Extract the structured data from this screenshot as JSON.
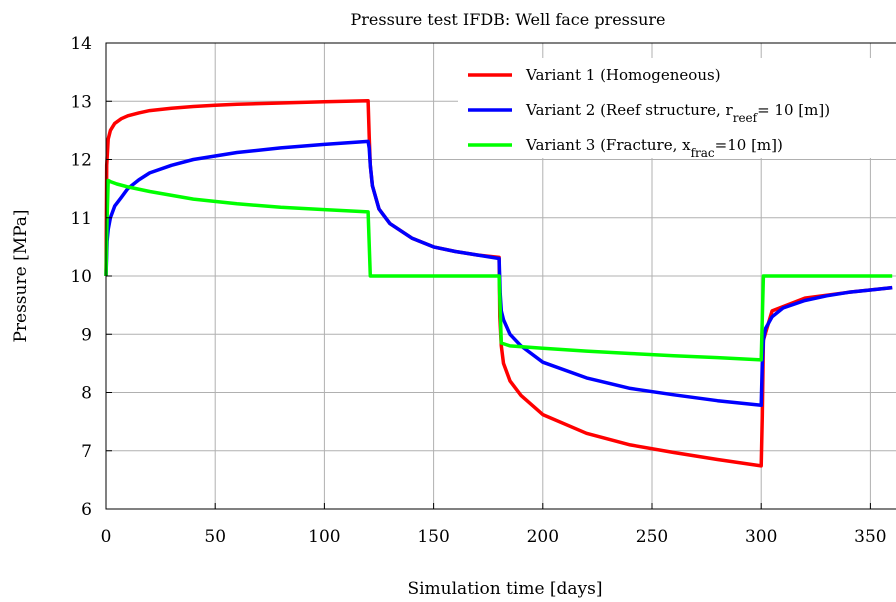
{
  "chart_data": {
    "type": "line",
    "title": "Pressure test IFDB: Well face pressure",
    "xlabel": "Simulation time [days]",
    "ylabel": "Pressure [MPa]",
    "xlim": [
      0,
      360
    ],
    "ylim": [
      6,
      14
    ],
    "xticks": [
      0,
      50,
      100,
      150,
      200,
      250,
      300,
      350
    ],
    "yticks": [
      6,
      7,
      8,
      9,
      10,
      11,
      12,
      13,
      14
    ],
    "grid": true,
    "legend_position": "top-right",
    "legend": [
      {
        "name": "Variant 1 (Homogeneous)",
        "color": "#ff0000"
      },
      {
        "parts": [
          {
            "text": "Variant 2 (Reef structure, r"
          },
          {
            "text": "reef",
            "sub": true
          },
          {
            "text": "= 10 [m])"
          }
        ],
        "color": "#0000ff"
      },
      {
        "parts": [
          {
            "text": "Variant 3 (Fracture, x"
          },
          {
            "text": "frac",
            "sub": true
          },
          {
            "text": "=10 [m])"
          }
        ],
        "color": "#00ff00"
      }
    ],
    "series": [
      {
        "color": "#ff0000",
        "x": [
          0,
          0.3,
          1,
          2,
          4,
          7,
          10,
          15,
          20,
          30,
          40,
          50,
          60,
          80,
          100,
          120,
          120,
          120.5,
          121,
          122,
          125,
          130,
          140,
          150,
          160,
          170,
          180,
          180,
          180.3,
          181,
          182,
          185,
          190,
          200,
          220,
          240,
          260,
          280,
          300,
          300,
          300.5,
          301,
          305,
          320,
          340,
          360
        ],
        "y": [
          10,
          11.9,
          12.35,
          12.5,
          12.62,
          12.7,
          12.75,
          12.8,
          12.84,
          12.88,
          12.91,
          12.93,
          12.95,
          12.97,
          12.99,
          13.01,
          13.01,
          12.4,
          11.9,
          11.55,
          11.15,
          10.9,
          10.65,
          10.5,
          10.42,
          10.36,
          10.32,
          10.32,
          9.3,
          8.8,
          8.5,
          8.2,
          7.95,
          7.62,
          7.3,
          7.1,
          6.97,
          6.85,
          6.74,
          6.74,
          7.6,
          8.9,
          9.4,
          9.62,
          9.72,
          9.8
        ]
      },
      {
        "color": "#0000ff",
        "x": [
          0,
          0.5,
          1,
          2,
          4,
          7,
          10,
          15,
          20,
          30,
          40,
          50,
          60,
          80,
          100,
          120,
          120,
          120.5,
          121,
          122,
          125,
          130,
          140,
          150,
          160,
          170,
          180,
          180,
          180.5,
          181,
          182,
          185,
          190,
          200,
          220,
          240,
          260,
          280,
          300,
          300,
          300.5,
          301,
          302,
          305,
          310,
          320,
          330,
          340,
          350,
          360
        ],
        "y": [
          10,
          10.6,
          10.8,
          11.0,
          11.2,
          11.35,
          11.5,
          11.65,
          11.77,
          11.9,
          12.0,
          12.06,
          12.12,
          12.2,
          12.26,
          12.31,
          12.31,
          12.2,
          11.9,
          11.55,
          11.15,
          10.9,
          10.65,
          10.5,
          10.42,
          10.36,
          10.3,
          10.3,
          9.7,
          9.4,
          9.25,
          9.0,
          8.8,
          8.52,
          8.25,
          8.07,
          7.96,
          7.86,
          7.78,
          7.78,
          8.5,
          8.9,
          9.1,
          9.3,
          9.45,
          9.58,
          9.66,
          9.72,
          9.76,
          9.8
        ]
      },
      {
        "color": "#00ff00",
        "x": [
          0,
          0.5,
          1,
          2,
          5,
          10,
          20,
          40,
          60,
          80,
          100,
          120,
          120,
          121,
          130,
          150,
          170,
          180,
          180,
          181,
          185,
          200,
          220,
          240,
          260,
          280,
          300,
          300,
          301,
          310,
          330,
          350,
          360
        ],
        "y": [
          10,
          11.0,
          11.64,
          11.62,
          11.58,
          11.53,
          11.45,
          11.32,
          11.24,
          11.18,
          11.14,
          11.1,
          11.1,
          10.0,
          10.0,
          10.0,
          10.0,
          10.0,
          10.0,
          8.85,
          8.8,
          8.76,
          8.71,
          8.67,
          8.63,
          8.6,
          8.56,
          8.56,
          10.0,
          10.0,
          10.0,
          10.0,
          10.0
        ]
      }
    ]
  }
}
